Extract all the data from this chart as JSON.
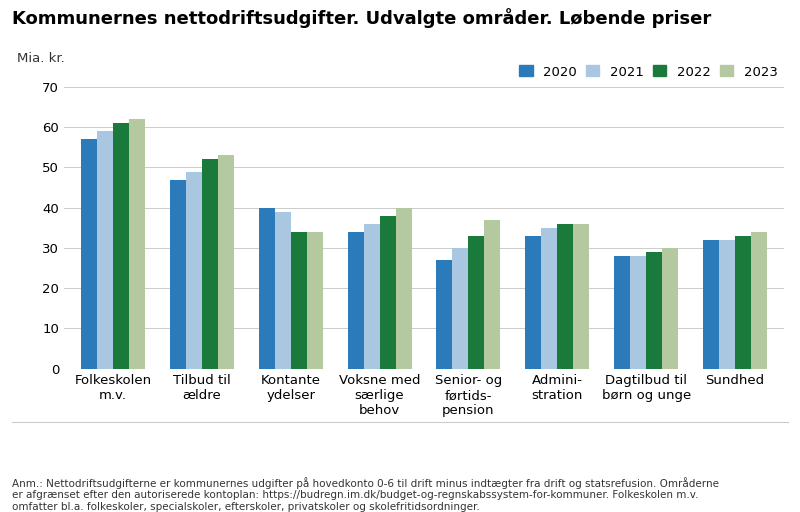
{
  "title": "Kommunernes nettodriftsudgifter. Udvalgte områder. Løbende priser",
  "ylabel": "Mia. kr.",
  "ylim": [
    0,
    70
  ],
  "yticks": [
    0,
    10,
    20,
    30,
    40,
    50,
    60,
    70
  ],
  "categories": [
    "Folkeskolen\nm.v.",
    "Tilbud til\nældre",
    "Kontante\nydelser",
    "Voksne med\nsærlige\nbehov",
    "Senior- og\nførtids-\npension",
    "Admini-\nstration",
    "Dagtilbud til\nbørn og unge",
    "Sundhed"
  ],
  "series": {
    "2020": [
      57,
      47,
      40,
      34,
      27,
      33,
      28,
      32
    ],
    "2021": [
      59,
      49,
      39,
      36,
      30,
      35,
      28,
      32
    ],
    "2022": [
      61,
      52,
      34,
      38,
      33,
      36,
      29,
      33
    ],
    "2023": [
      62,
      53,
      34,
      40,
      37,
      36,
      30,
      34
    ]
  },
  "colors": {
    "2020": "#2b7bba",
    "2021": "#aac7e2",
    "2022": "#1a7a3c",
    "2023": "#b5c9a0"
  },
  "legend_labels": [
    "2020",
    "2021",
    "2022",
    "2023"
  ],
  "annotation_line1": "Anm.: Nettodriftsudgifterne er kommunernes udgifter på hovedkonto 0-6 til drift minus indtægter fra drift og statsrefusion. Områderne",
  "annotation_line2": "er afgrænset efter den autoriserede kontoplan: https://budregn.im.dk/budget-og-regnskabssystem-for-kommuner. Folkeskolen m.v.",
  "annotation_line3": "omfatter bl.a. folkeskoler, specialskoler, efterskoler, privatskoler og skolefritidsordninger.",
  "background_color": "#ffffff",
  "grid_color": "#cccccc",
  "title_fontsize": 13,
  "axis_fontsize": 9.5,
  "tick_fontsize": 9.5,
  "annotation_fontsize": 7.5
}
